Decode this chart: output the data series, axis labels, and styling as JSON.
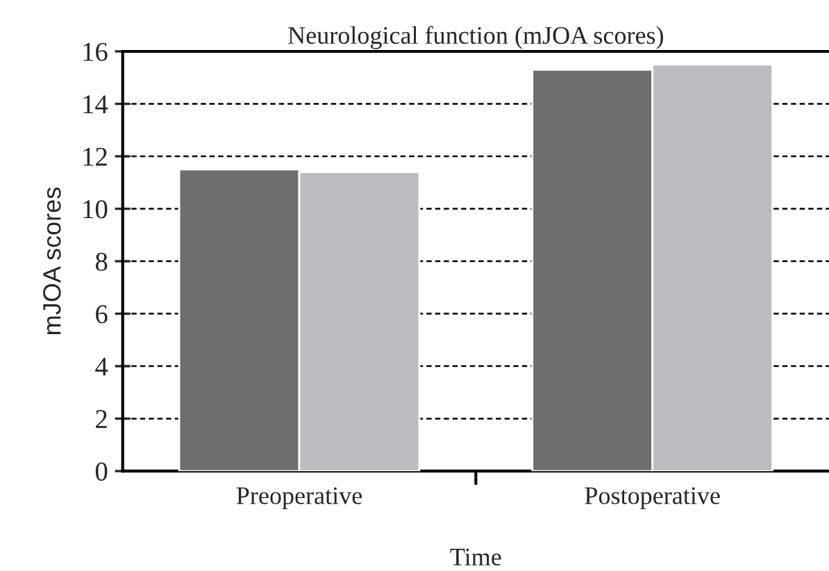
{
  "chart_data": {
    "type": "bar",
    "title": "Neurological function (mJOA scores)",
    "xlabel": "Time",
    "ylabel": "mJOA scores",
    "categories": [
      "Preoperative",
      "Postoperative"
    ],
    "series": [
      {
        "color": "#6d6e70",
        "values": [
          11.5,
          15.3
        ]
      },
      {
        "color": "#bbbcbf",
        "values": [
          11.4,
          15.5
        ]
      }
    ],
    "ylim": [
      0,
      16
    ],
    "yticks": [
      0,
      2,
      4,
      6,
      8,
      10,
      12,
      14,
      16
    ],
    "grid": "y",
    "legend": false
  }
}
